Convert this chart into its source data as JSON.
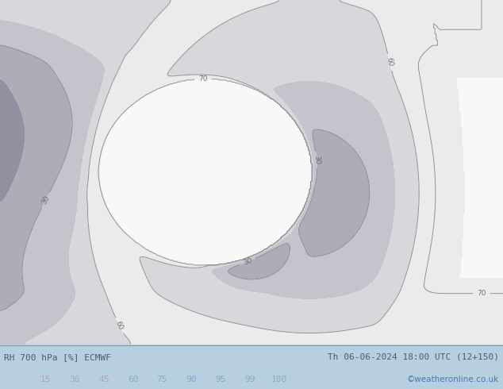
{
  "title_left": "RH 700 hPa [%] ECMWF",
  "title_right": "Th 06-06-2024 18:00 UTC (12+150)",
  "credit": "©weatheronline.co.uk",
  "colorbar_levels": [
    15,
    30,
    45,
    60,
    75,
    90,
    95,
    99,
    100
  ],
  "bg_color": "#b8cfe0",
  "fig_width": 6.34,
  "fig_height": 4.9,
  "dpi": 100,
  "bottom_bar_color": "#ccdaeb",
  "text_color": "#505878",
  "credit_color": "#4477bb",
  "rh_levels": [
    0,
    15,
    30,
    45,
    60,
    75,
    90,
    95,
    99,
    100
  ],
  "rh_colors": [
    "#9090a0",
    "#adadb8",
    "#c4c4cc",
    "#d8d8dc",
    "#ebebeb",
    "#f8f8f8",
    "#c8e8b0",
    "#78cc78",
    "#44aa44"
  ],
  "contour_levels": [
    30,
    60,
    70
  ],
  "contour_color": "#888888",
  "label_colors_grey": "#aaaaaa",
  "label_colors_blue": "#88aacc"
}
